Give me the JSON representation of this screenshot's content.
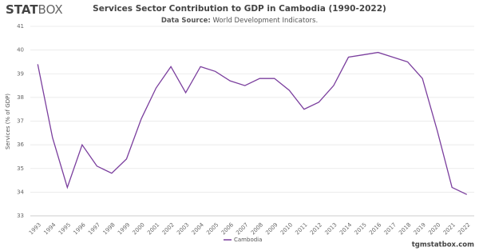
{
  "logo": {
    "bold": "STAT",
    "light": "BOX"
  },
  "footer": "tgmstatbox.com",
  "chart_data": {
    "type": "line",
    "title": "Services Sector Contribution to GDP in Cambodia (1990-2022)",
    "source_label": "Data Source:",
    "subtitle": "World Development Indicators.",
    "y_label": "Services (% of GDP)",
    "categories": [
      "1993",
      "1994",
      "1995",
      "1996",
      "1997",
      "1998",
      "1999",
      "2000",
      "2001",
      "2002",
      "2003",
      "2004",
      "2005",
      "2006",
      "2007",
      "2008",
      "2009",
      "2010",
      "2011",
      "2012",
      "2013",
      "2014",
      "2015",
      "2016",
      "2017",
      "2018",
      "2019",
      "2020",
      "2021",
      "2022"
    ],
    "series": [
      {
        "name": "Cambodia",
        "color": "#7b3f9e",
        "values": [
          39.4,
          36.3,
          34.2,
          36.0,
          35.1,
          34.8,
          35.4,
          37.1,
          38.4,
          39.3,
          38.2,
          39.3,
          39.1,
          38.7,
          38.5,
          38.8,
          38.8,
          38.3,
          37.5,
          37.8,
          38.5,
          39.7,
          39.8,
          39.9,
          39.7,
          39.5,
          38.8,
          36.6,
          34.2,
          33.9
        ]
      }
    ],
    "ylim": [
      33,
      41
    ],
    "yticks": [
      33,
      34,
      35,
      36,
      37,
      38,
      39,
      40,
      41
    ],
    "grid": true,
    "legend": "bottom"
  }
}
